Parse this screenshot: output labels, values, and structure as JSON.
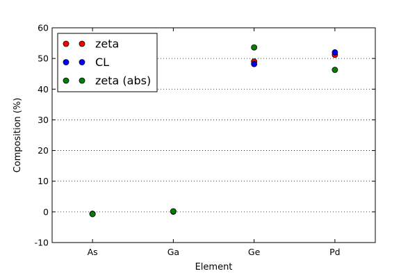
{
  "chart_data": {
    "type": "scatter",
    "title": "",
    "xlabel": "Element",
    "ylabel": "Composition (%)",
    "categories": [
      "As",
      "Ga",
      "Ge",
      "Pd"
    ],
    "ylim": [
      -10,
      60
    ],
    "yticks": [
      -10,
      0,
      10,
      20,
      30,
      40,
      50,
      60
    ],
    "grid": "y-dotted",
    "legend_position": "top-left",
    "series": [
      {
        "name": "zeta",
        "color": "#ff0000",
        "values": [
          -0.6,
          0.1,
          49.0,
          51.2
        ]
      },
      {
        "name": "CL",
        "color": "#0000ff",
        "values": [
          -0.7,
          0.1,
          48.2,
          52.0
        ]
      },
      {
        "name": "zeta (abs)",
        "color": "#008000",
        "values": [
          -0.7,
          0.2,
          53.6,
          46.3
        ]
      }
    ]
  }
}
